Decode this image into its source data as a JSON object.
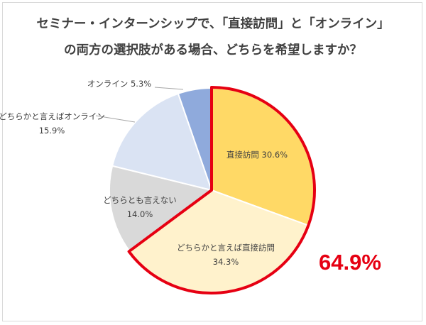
{
  "title_line1": "セミナー・インターンシップで、「直接訪問」と「オンライン」",
  "title_line2": "の両方の選択肢がある場合、どちらを希望しますか？",
  "callout": {
    "text": "64.9%",
    "color": "#e60012"
  },
  "highlight_color": "#e60012",
  "chart_data": {
    "type": "pie",
    "title": "セミナー・インターンシップで、「直接訪問」と「オンライン」の両方の選択肢がある場合、どちらを希望しますか？",
    "unit": "%",
    "start_angle_deg": 0,
    "direction": "clockwise",
    "slices": [
      {
        "label": "直接訪問",
        "value": 30.6,
        "value_text": "30.6%",
        "color": "#ffd966",
        "highlight": true
      },
      {
        "label": "どちらかと言えば直接訪問",
        "value": 34.3,
        "value_text": "34.3%",
        "color": "#fff2cc",
        "highlight": true
      },
      {
        "label": "どちらとも言えない",
        "value": 14.0,
        "value_text": "14.0%",
        "color": "#d9d9d9",
        "highlight": false
      },
      {
        "label": "どちらかと言えばオンライン",
        "value": 15.9,
        "value_text": "15.9%",
        "color": "#dae3f3",
        "highlight": false
      },
      {
        "label": "オンライン",
        "value": 5.3,
        "value_text": "5.3%",
        "color": "#8faadc",
        "highlight": false
      }
    ],
    "highlight_total_text": "64.9%"
  }
}
